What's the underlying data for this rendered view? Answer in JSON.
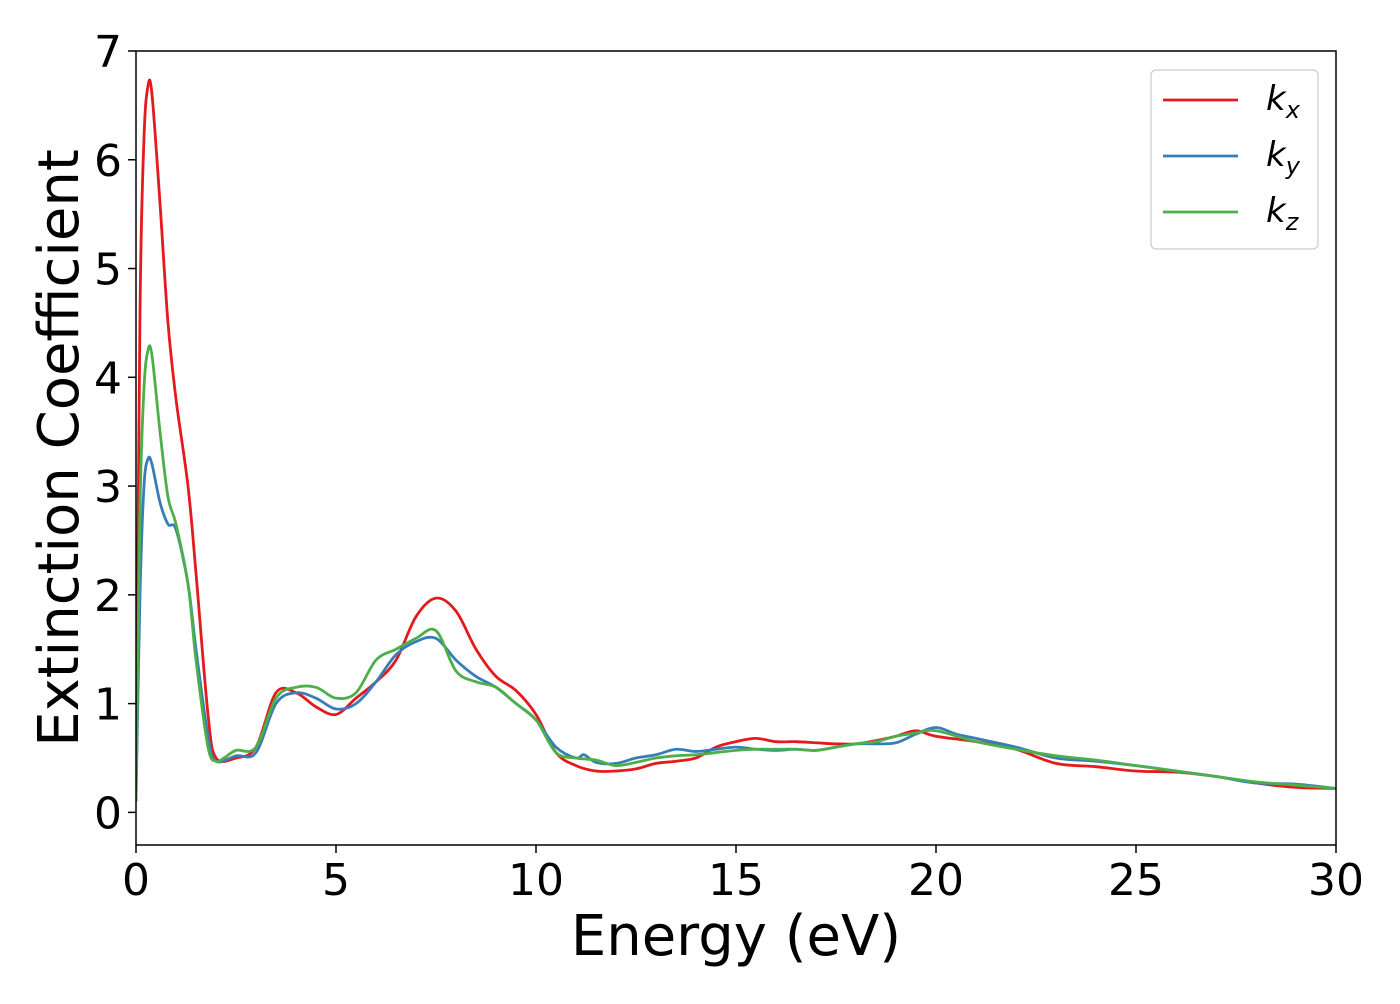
{
  "chart_data": {
    "type": "line",
    "title": "",
    "xlabel": "Energy (eV)",
    "ylabel": "Extinction Coefficient",
    "xlim": [
      0,
      30
    ],
    "ylim": [
      -0.3,
      7
    ],
    "xticks": [
      0,
      5,
      10,
      15,
      20,
      25,
      30
    ],
    "yticks": [
      0,
      1,
      2,
      3,
      4,
      5,
      6,
      7
    ],
    "grid": false,
    "legend_position": "top-right",
    "series": [
      {
        "name": "k",
        "subscript": "x",
        "color": "#e41a1c",
        "x": [
          0,
          0.1,
          0.2,
          0.3,
          0.4,
          0.6,
          0.8,
          1.0,
          1.3,
          1.5,
          1.8,
          2.0,
          2.5,
          3.0,
          3.5,
          4.0,
          4.5,
          5.0,
          5.5,
          6.0,
          6.5,
          7.0,
          7.5,
          8.0,
          8.5,
          9.0,
          9.5,
          10.0,
          10.5,
          11.0,
          11.5,
          12.0,
          12.5,
          13.0,
          13.5,
          14.0,
          14.5,
          15.0,
          15.5,
          16.0,
          16.5,
          17.0,
          17.5,
          18.0,
          18.5,
          19.0,
          19.5,
          20.0,
          21.0,
          22.0,
          23.0,
          24.0,
          25.0,
          26.0,
          27.0,
          28.0,
          29.0,
          30.0
        ],
        "y": [
          0.2,
          4.6,
          6.2,
          6.68,
          6.6,
          5.6,
          4.5,
          3.8,
          3.0,
          2.2,
          0.9,
          0.5,
          0.5,
          0.6,
          1.1,
          1.1,
          0.97,
          0.9,
          1.05,
          1.2,
          1.4,
          1.8,
          1.97,
          1.85,
          1.5,
          1.25,
          1.12,
          0.9,
          0.55,
          0.43,
          0.38,
          0.38,
          0.4,
          0.45,
          0.47,
          0.5,
          0.6,
          0.65,
          0.68,
          0.65,
          0.65,
          0.64,
          0.63,
          0.63,
          0.66,
          0.7,
          0.75,
          0.7,
          0.65,
          0.58,
          0.45,
          0.42,
          0.38,
          0.37,
          0.33,
          0.27,
          0.23,
          0.22
        ]
      },
      {
        "name": "k",
        "subscript": "y",
        "color": "#377eb8",
        "x": [
          0,
          0.1,
          0.2,
          0.3,
          0.4,
          0.6,
          0.8,
          1.0,
          1.3,
          1.5,
          1.8,
          2.0,
          2.5,
          3.0,
          3.5,
          4.0,
          4.5,
          5.0,
          5.5,
          6.0,
          6.5,
          7.0,
          7.5,
          8.0,
          8.5,
          9.0,
          9.5,
          10.0,
          10.5,
          11.0,
          11.2,
          11.5,
          12.0,
          12.5,
          13.0,
          13.5,
          14.0,
          14.5,
          15.0,
          15.5,
          16.0,
          16.5,
          17.0,
          17.5,
          18.0,
          18.5,
          19.0,
          19.5,
          20.0,
          20.5,
          21.0,
          22.0,
          23.0,
          24.0,
          25.0,
          26.0,
          27.0,
          28.0,
          29.0,
          30.0
        ],
        "y": [
          0.1,
          2.0,
          3.0,
          3.25,
          3.2,
          2.85,
          2.65,
          2.6,
          2.1,
          1.5,
          0.7,
          0.47,
          0.52,
          0.55,
          1.0,
          1.1,
          1.05,
          0.95,
          1.0,
          1.2,
          1.45,
          1.57,
          1.6,
          1.4,
          1.25,
          1.15,
          1.0,
          0.85,
          0.6,
          0.5,
          0.53,
          0.46,
          0.45,
          0.5,
          0.53,
          0.58,
          0.56,
          0.58,
          0.6,
          0.58,
          0.57,
          0.58,
          0.57,
          0.6,
          0.63,
          0.63,
          0.64,
          0.72,
          0.78,
          0.72,
          0.68,
          0.6,
          0.5,
          0.47,
          0.43,
          0.38,
          0.33,
          0.27,
          0.26,
          0.22
        ]
      },
      {
        "name": "k",
        "subscript": "z",
        "color": "#4daf4a",
        "x": [
          0,
          0.1,
          0.2,
          0.3,
          0.4,
          0.6,
          0.8,
          1.0,
          1.3,
          1.5,
          1.8,
          2.0,
          2.2,
          2.5,
          3.0,
          3.5,
          4.0,
          4.5,
          5.0,
          5.5,
          6.0,
          6.5,
          7.0,
          7.5,
          8.0,
          8.5,
          9.0,
          9.5,
          10.0,
          10.5,
          11.0,
          11.5,
          12.0,
          12.5,
          13.0,
          13.5,
          14.0,
          14.5,
          15.0,
          15.5,
          16.0,
          16.5,
          17.0,
          17.5,
          18.0,
          18.5,
          19.0,
          19.5,
          20.0,
          21.0,
          22.0,
          23.0,
          24.0,
          25.0,
          26.0,
          27.0,
          28.0,
          29.0,
          30.0
        ],
        "y": [
          0.1,
          2.8,
          3.9,
          4.25,
          4.2,
          3.5,
          2.9,
          2.65,
          2.1,
          1.4,
          0.6,
          0.47,
          0.5,
          0.57,
          0.6,
          1.05,
          1.15,
          1.15,
          1.05,
          1.1,
          1.4,
          1.5,
          1.6,
          1.67,
          1.3,
          1.2,
          1.15,
          1.0,
          0.85,
          0.55,
          0.5,
          0.48,
          0.43,
          0.46,
          0.5,
          0.52,
          0.53,
          0.55,
          0.57,
          0.58,
          0.58,
          0.58,
          0.57,
          0.6,
          0.63,
          0.65,
          0.7,
          0.73,
          0.75,
          0.65,
          0.58,
          0.52,
          0.48,
          0.43,
          0.38,
          0.33,
          0.28,
          0.25,
          0.22
        ]
      }
    ]
  }
}
